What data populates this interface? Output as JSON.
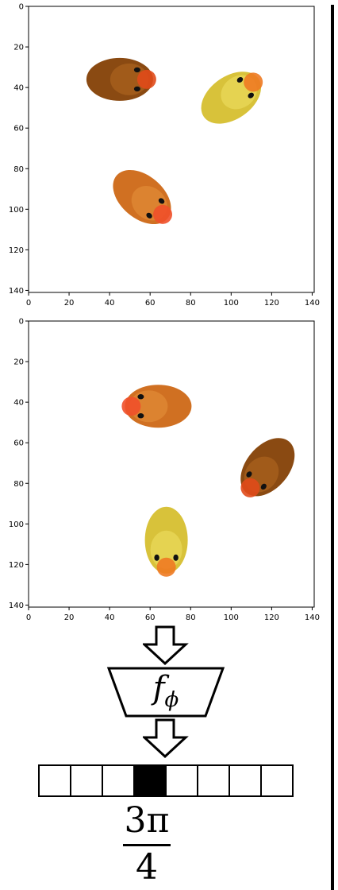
{
  "plots": [
    {
      "x_ticks": [
        "0",
        "20",
        "40",
        "60",
        "80",
        "100",
        "120",
        "140"
      ],
      "y_ticks": [
        "0",
        "20",
        "40",
        "60",
        "80",
        "100",
        "120",
        "140"
      ],
      "ducks": [
        {
          "name": "brown-duck",
          "color": "#8a4a12",
          "highlight": "#a8621e",
          "beak": "#e04a1a",
          "x": 45,
          "y": 36,
          "rotation_deg": 0
        },
        {
          "name": "yellow-duck",
          "color": "#d8c23a",
          "highlight": "#ead85a",
          "beak": "#ee7a22",
          "x": 100,
          "y": 45,
          "rotation_deg": -35
        },
        {
          "name": "orange-duck",
          "color": "#d07022",
          "highlight": "#e08a36",
          "beak": "#f0502a",
          "x": 56,
          "y": 94,
          "rotation_deg": 40
        }
      ]
    },
    {
      "x_ticks": [
        "0",
        "20",
        "40",
        "60",
        "80",
        "100",
        "120",
        "140"
      ],
      "y_ticks": [
        "0",
        "20",
        "40",
        "60",
        "80",
        "100",
        "120",
        "140"
      ],
      "ducks": [
        {
          "name": "orange-duck",
          "color": "#d07022",
          "highlight": "#e08a36",
          "beak": "#f0502a",
          "x": 64,
          "y": 42,
          "rotation_deg": 180
        },
        {
          "name": "brown-duck",
          "color": "#8a4a12",
          "highlight": "#a8621e",
          "beak": "#e04a1a",
          "x": 118,
          "y": 72,
          "rotation_deg": 130
        },
        {
          "name": "yellow-duck",
          "color": "#d8c23a",
          "highlight": "#ead85a",
          "beak": "#ee7a22",
          "x": 68,
          "y": 108,
          "rotation_deg": 90
        }
      ]
    }
  ],
  "encoder": {
    "symbol": "f",
    "subscript": "ϕ"
  },
  "angle_bins": {
    "count": 8,
    "active_index": 3
  },
  "output": {
    "numerator": "3π",
    "denominator": "4"
  },
  "colors": {
    "line": "#000000",
    "background": "#ffffff"
  }
}
